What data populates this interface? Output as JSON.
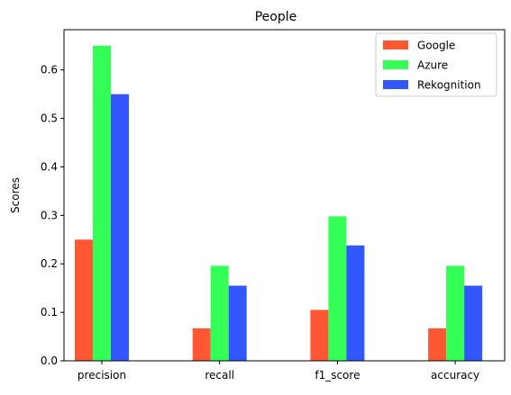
{
  "chart_data": {
    "type": "bar",
    "title": "People",
    "xlabel": "",
    "ylabel": "Scores",
    "categories": [
      "precision",
      "recall",
      "f1_score",
      "accuracy"
    ],
    "series": [
      {
        "name": "Google",
        "color": "#ff5733",
        "values": [
          0.25,
          0.067,
          0.105,
          0.067
        ]
      },
      {
        "name": "Azure",
        "color": "#33ff57",
        "values": [
          0.65,
          0.196,
          0.298,
          0.196
        ]
      },
      {
        "name": "Rekognition",
        "color": "#3357ff",
        "values": [
          0.55,
          0.155,
          0.238,
          0.155
        ]
      }
    ],
    "ylim": [
      0,
      0.683
    ],
    "yticks": [
      "0.0",
      "0.1",
      "0.2",
      "0.3",
      "0.4",
      "0.5",
      "0.6"
    ],
    "grid": false,
    "legend_position": "top-right"
  }
}
